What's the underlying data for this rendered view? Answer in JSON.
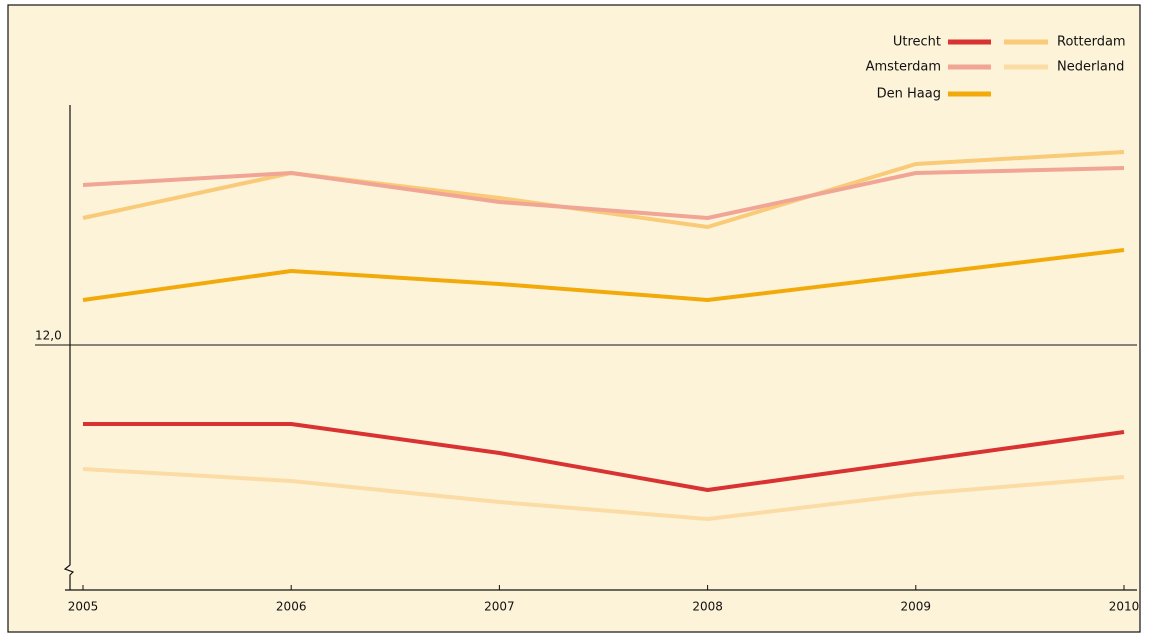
{
  "chart_data": {
    "type": "line",
    "categories": [
      "2005",
      "2006",
      "2007",
      "2008",
      "2009",
      "2010"
    ],
    "series": [
      {
        "name": "Utrecht",
        "color": "#d93232",
        "values": [
          11.21,
          11.21,
          10.92,
          10.55,
          10.84,
          11.13
        ]
      },
      {
        "name": "Amsterdam",
        "color": "#f0a595",
        "values": [
          13.6,
          13.72,
          13.43,
          13.27,
          13.72,
          13.77
        ]
      },
      {
        "name": "Den Haag",
        "color": "#f2aa0a",
        "values": [
          12.45,
          12.74,
          12.61,
          12.45,
          12.7,
          12.95
        ]
      },
      {
        "name": "Rotterdam",
        "color": "#f9ca78",
        "values": [
          13.27,
          13.72,
          13.47,
          13.18,
          13.81,
          13.93
        ]
      },
      {
        "name": "Nederland",
        "color": "#fcdca5",
        "values": [
          10.76,
          10.64,
          10.43,
          10.26,
          10.51,
          10.68
        ]
      }
    ],
    "ylim": [
      9.7,
      14.4
    ],
    "yticks": [
      {
        "value": 12,
        "label": "12,0"
      }
    ],
    "grid": true
  }
}
